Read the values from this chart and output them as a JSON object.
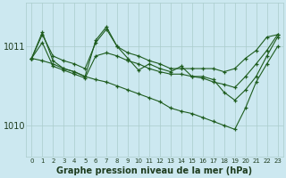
{
  "title": "Graphe pression niveau de la mer (hPa)",
  "background_color": "#cce8f0",
  "line_color": "#1e5c1e",
  "grid_color": "#aacccc",
  "text_color": "#1e3c1e",
  "ylim": [
    1009.6,
    1011.55
  ],
  "yticks": [
    1010,
    1011
  ],
  "xlabel_fontsize": 7.0,
  "series": [
    [
      1010.85,
      1011.15,
      1010.88,
      1010.82,
      1010.78,
      1010.72,
      1011.05,
      1011.22,
      1011.0,
      1010.92,
      1010.88,
      1010.82,
      1010.78,
      1010.72,
      1010.72,
      1010.72,
      1010.72,
      1010.72,
      1010.68,
      1010.72,
      1010.85,
      1010.95,
      1011.12,
      1011.15
    ],
    [
      1010.85,
      1011.05,
      1010.75,
      1010.7,
      1010.65,
      1010.6,
      1010.88,
      1010.92,
      1010.88,
      1010.82,
      1010.78,
      1010.72,
      1010.68,
      1010.65,
      1010.65,
      1010.62,
      1010.6,
      1010.55,
      1010.52,
      1010.48,
      1010.62,
      1010.78,
      1010.95,
      1011.15
    ],
    [
      1010.85,
      1011.18,
      1010.82,
      1010.72,
      1010.68,
      1010.62,
      1011.08,
      1011.25,
      1011.0,
      1010.85,
      1010.7,
      1010.78,
      1010.72,
      1010.68,
      1010.75,
      1010.62,
      1010.62,
      1010.58,
      1010.42,
      1010.32,
      1010.45,
      1010.62,
      1010.88,
      1011.12
    ],
    [
      1010.85,
      1010.82,
      1010.78,
      1010.72,
      1010.68,
      1010.62,
      1010.58,
      1010.55,
      1010.5,
      1010.45,
      1010.4,
      1010.35,
      1010.3,
      1010.22,
      1010.18,
      1010.15,
      1010.1,
      1010.05,
      1010.0,
      1009.95,
      1010.22,
      1010.55,
      1010.78,
      1011.0
    ]
  ],
  "x": [
    0,
    1,
    2,
    3,
    4,
    5,
    6,
    7,
    8,
    9,
    10,
    11,
    12,
    13,
    14,
    15,
    16,
    17,
    18,
    19,
    20,
    21,
    22,
    23
  ]
}
